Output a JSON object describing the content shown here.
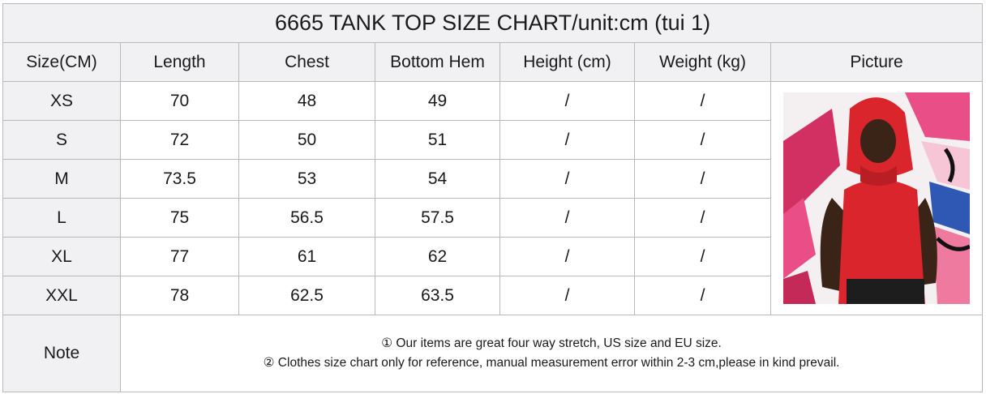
{
  "title": "6665 TANK TOP SIZE CHART/unit:cm (tui 1)",
  "headers": [
    "Size(CM)",
    "Length",
    "Chest",
    "Bottom Hem",
    "Height (cm)",
    "Weight (kg)",
    "Picture"
  ],
  "rows": [
    [
      "XS",
      "70",
      "48",
      "49",
      "/",
      "/"
    ],
    [
      "S",
      "72",
      "50",
      "51",
      "/",
      "/"
    ],
    [
      "M",
      "73.5",
      "53",
      "54",
      "/",
      "/"
    ],
    [
      "L",
      "75",
      "56.5",
      "57.5",
      "/",
      "/"
    ],
    [
      "XL",
      "77",
      "61",
      "62",
      "/",
      "/"
    ],
    [
      "XXL",
      "78",
      "62.5",
      "63.5",
      "/",
      "/"
    ]
  ],
  "note": {
    "label": "Note",
    "lines": [
      "① Our items are great four way stretch, US size and EU size.",
      "② Clothes size chart only for reference, manual measurement error within 2-3 cm,please in kind prevail."
    ]
  },
  "picture": {
    "icon": "model-photo-red-hooded-tank-top",
    "colors": {
      "shirt": "#d9252b",
      "background_pink": "#e94e86",
      "background_blue": "#2f58b4"
    }
  }
}
